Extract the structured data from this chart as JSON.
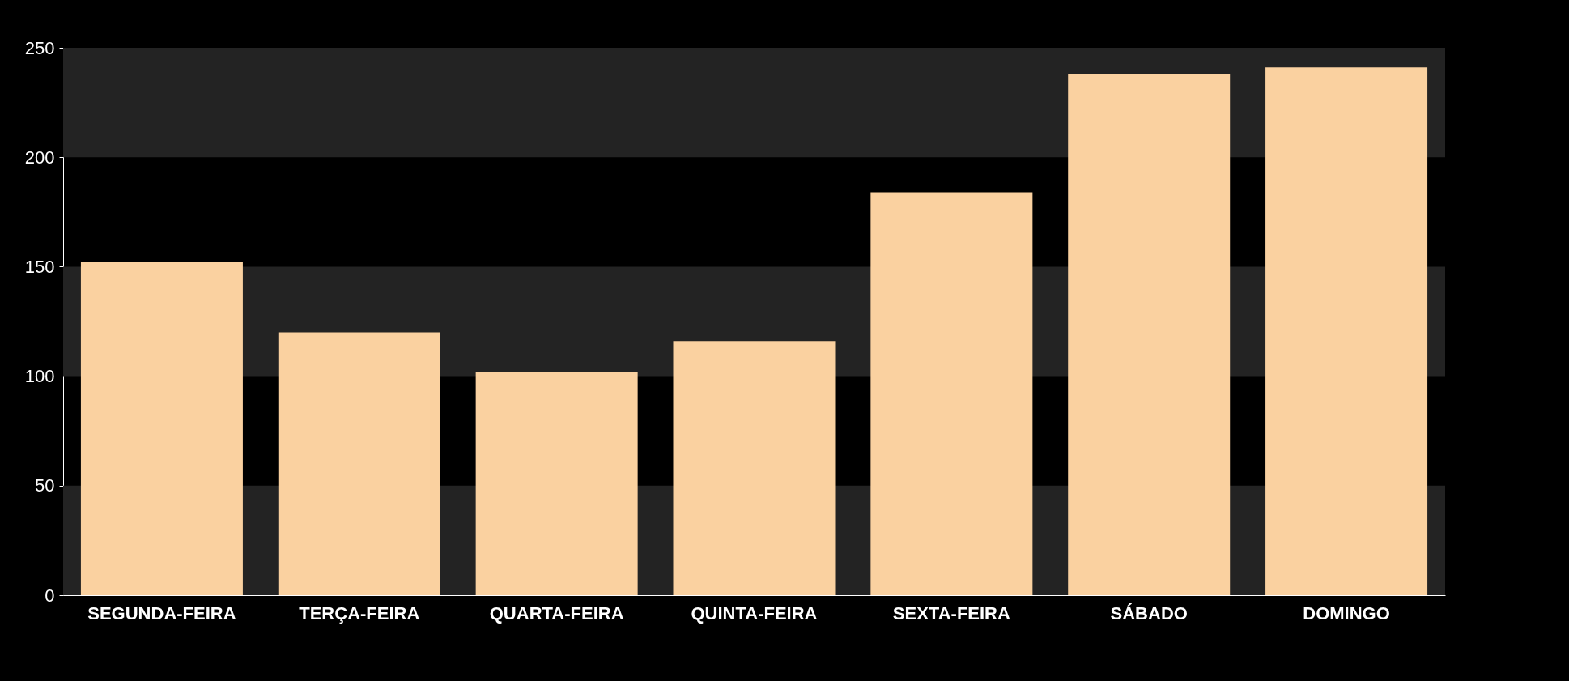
{
  "chart_data": {
    "type": "bar",
    "categories": [
      "SEGUNDA-FEIRA",
      "TERÇA-FEIRA",
      "QUARTA-FEIRA",
      "QUINTA-FEIRA",
      "SEXTA-FEIRA",
      "SÁBADO",
      "DOMINGO"
    ],
    "values": [
      152,
      120,
      102,
      116,
      184,
      238,
      241
    ],
    "color": "#fad1a0",
    "ylim": [
      0,
      250
    ],
    "yticks": [
      0,
      50,
      100,
      150,
      200,
      250
    ],
    "bands": [
      {
        "axis": "y",
        "from": 0,
        "to": 50,
        "color": "#232323"
      },
      {
        "axis": "y",
        "from": 100,
        "to": 150,
        "color": "#232323"
      },
      {
        "axis": "y",
        "from": 200,
        "to": 250,
        "color": "#232323"
      }
    ]
  }
}
